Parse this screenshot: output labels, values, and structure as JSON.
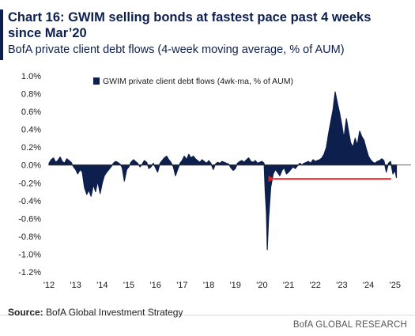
{
  "header": {
    "title": "Chart 16: GWIM selling bonds at fastest pace past 4 weeks since Mar’20",
    "subtitle": "BofA private client debt flows (4-week moving average, % of AUM)"
  },
  "source": {
    "label": "Source:",
    "text": "BofA Global Investment Strategy"
  },
  "footer": {
    "brand": "BofA GLOBAL RESEARCH"
  },
  "colors": {
    "series": "#0c1f4d",
    "arrow": "#e01e25",
    "text": "#1a1a1a"
  },
  "chart_data": {
    "type": "area",
    "legend_position": "top-left",
    "grid": false,
    "xlim": [
      2012,
      2025.6
    ],
    "ylim": [
      -1.2,
      1.0
    ],
    "y_ticks": [
      1.0,
      0.8,
      0.6,
      0.4,
      0.2,
      0.0,
      -0.2,
      -0.4,
      -0.6,
      -0.8,
      -1.0,
      -1.2
    ],
    "y_tick_labels": [
      "1.0%",
      "0.8%",
      "0.6%",
      "0.4%",
      "0.2%",
      "0.0%",
      "-0.2%",
      "-0.4%",
      "-0.6%",
      "-0.8%",
      "-1.0%",
      "-1.2%"
    ],
    "x_ticks": [
      2012,
      2013,
      2014,
      2015,
      2016,
      2017,
      2018,
      2019,
      2020,
      2021,
      2022,
      2023,
      2024,
      2025
    ],
    "x_tick_labels": [
      "'12",
      "'13",
      "'14",
      "'15",
      "'16",
      "'17",
      "'18",
      "'19",
      "'20",
      "'21",
      "'22",
      "'23",
      "'24",
      "'25"
    ],
    "series": [
      {
        "name": "GWIM private client debt flows (4wk-ma, % of AUM)",
        "x": [
          2012.0,
          2012.08,
          2012.17,
          2012.25,
          2012.33,
          2012.42,
          2012.5,
          2012.58,
          2012.67,
          2012.75,
          2012.83,
          2012.92,
          2013.0,
          2013.08,
          2013.17,
          2013.25,
          2013.33,
          2013.42,
          2013.5,
          2013.58,
          2013.67,
          2013.75,
          2013.83,
          2013.92,
          2014.0,
          2014.08,
          2014.17,
          2014.25,
          2014.33,
          2014.42,
          2014.5,
          2014.58,
          2014.67,
          2014.75,
          2014.83,
          2014.92,
          2015.0,
          2015.08,
          2015.17,
          2015.25,
          2015.33,
          2015.42,
          2015.5,
          2015.58,
          2015.67,
          2015.75,
          2015.83,
          2015.92,
          2016.0,
          2016.08,
          2016.17,
          2016.25,
          2016.33,
          2016.42,
          2016.5,
          2016.58,
          2016.67,
          2016.75,
          2016.83,
          2016.92,
          2017.0,
          2017.08,
          2017.17,
          2017.25,
          2017.33,
          2017.42,
          2017.5,
          2017.58,
          2017.67,
          2017.75,
          2017.83,
          2017.92,
          2018.0,
          2018.08,
          2018.17,
          2018.25,
          2018.33,
          2018.42,
          2018.5,
          2018.58,
          2018.67,
          2018.75,
          2018.83,
          2018.92,
          2019.0,
          2019.08,
          2019.17,
          2019.25,
          2019.33,
          2019.42,
          2019.5,
          2019.58,
          2019.67,
          2019.75,
          2019.83,
          2019.92,
          2020.0,
          2020.08,
          2020.12,
          2020.17,
          2020.2,
          2020.25,
          2020.33,
          2020.42,
          2020.5,
          2020.58,
          2020.67,
          2020.75,
          2020.83,
          2020.92,
          2021.0,
          2021.08,
          2021.17,
          2021.25,
          2021.33,
          2021.42,
          2021.5,
          2021.58,
          2021.67,
          2021.75,
          2021.83,
          2021.92,
          2022.0,
          2022.08,
          2022.17,
          2022.25,
          2022.33,
          2022.42,
          2022.5,
          2022.58,
          2022.67,
          2022.75,
          2022.83,
          2022.92,
          2023.0,
          2023.08,
          2023.17,
          2023.25,
          2023.33,
          2023.42,
          2023.5,
          2023.58,
          2023.67,
          2023.75,
          2023.83,
          2023.92,
          2024.0,
          2024.08,
          2024.17,
          2024.25,
          2024.33,
          2024.42,
          2024.5,
          2024.58,
          2024.67,
          2024.75,
          2024.83,
          2024.92,
          2025.0,
          2025.05
        ],
        "y": [
          0.02,
          0.06,
          0.08,
          0.03,
          0.05,
          0.09,
          0.04,
          0.02,
          0.07,
          0.05,
          0.03,
          -0.02,
          -0.05,
          -0.1,
          -0.05,
          -0.08,
          -0.25,
          -0.33,
          -0.28,
          -0.35,
          -0.22,
          -0.3,
          -0.18,
          -0.32,
          -0.2,
          -0.12,
          -0.08,
          -0.05,
          -0.02,
          0.02,
          0.04,
          0.03,
          0.01,
          -0.03,
          -0.18,
          -0.05,
          -0.02,
          0.03,
          0.06,
          0.04,
          0.02,
          -0.02,
          0.01,
          0.05,
          0.03,
          -0.04,
          -0.02,
          0.02,
          -0.03,
          -0.08,
          0.02,
          0.05,
          0.08,
          0.1,
          0.06,
          0.03,
          -0.02,
          -0.12,
          -0.05,
          0.02,
          0.05,
          0.1,
          0.06,
          0.12,
          0.08,
          0.1,
          0.07,
          0.05,
          0.03,
          0.06,
          0.04,
          0.02,
          0.05,
          0.02,
          -0.05,
          0.01,
          0.03,
          0.02,
          0.04,
          0.03,
          0.02,
          0.01,
          -0.03,
          -0.06,
          -0.04,
          0.02,
          0.04,
          0.05,
          0.03,
          0.06,
          0.08,
          0.04,
          0.03,
          0.05,
          0.02,
          0.03,
          0.04,
          0.02,
          -0.3,
          -0.55,
          -0.95,
          -0.6,
          -0.25,
          -0.1,
          -0.05,
          -0.08,
          -0.12,
          -0.06,
          -0.03,
          -0.1,
          -0.08,
          -0.05,
          -0.02,
          -0.04,
          -0.01,
          0.02,
          0.0,
          0.02,
          0.03,
          0.04,
          0.02,
          0.06,
          0.04,
          0.05,
          0.06,
          0.08,
          0.12,
          0.2,
          0.35,
          0.48,
          0.62,
          0.82,
          0.7,
          0.58,
          0.45,
          0.3,
          0.52,
          0.38,
          0.25,
          0.2,
          0.3,
          0.22,
          0.38,
          0.32,
          0.28,
          0.18,
          0.1,
          0.06,
          0.03,
          0.02,
          0.04,
          0.05,
          0.07,
          0.05,
          -0.08,
          0.02,
          0.04,
          -0.1,
          -0.06,
          -0.14
        ]
      }
    ],
    "annotations": [
      {
        "type": "arrow",
        "from": [
          2024.85,
          -0.155
        ],
        "to": [
          2020.45,
          -0.155
        ]
      }
    ]
  }
}
